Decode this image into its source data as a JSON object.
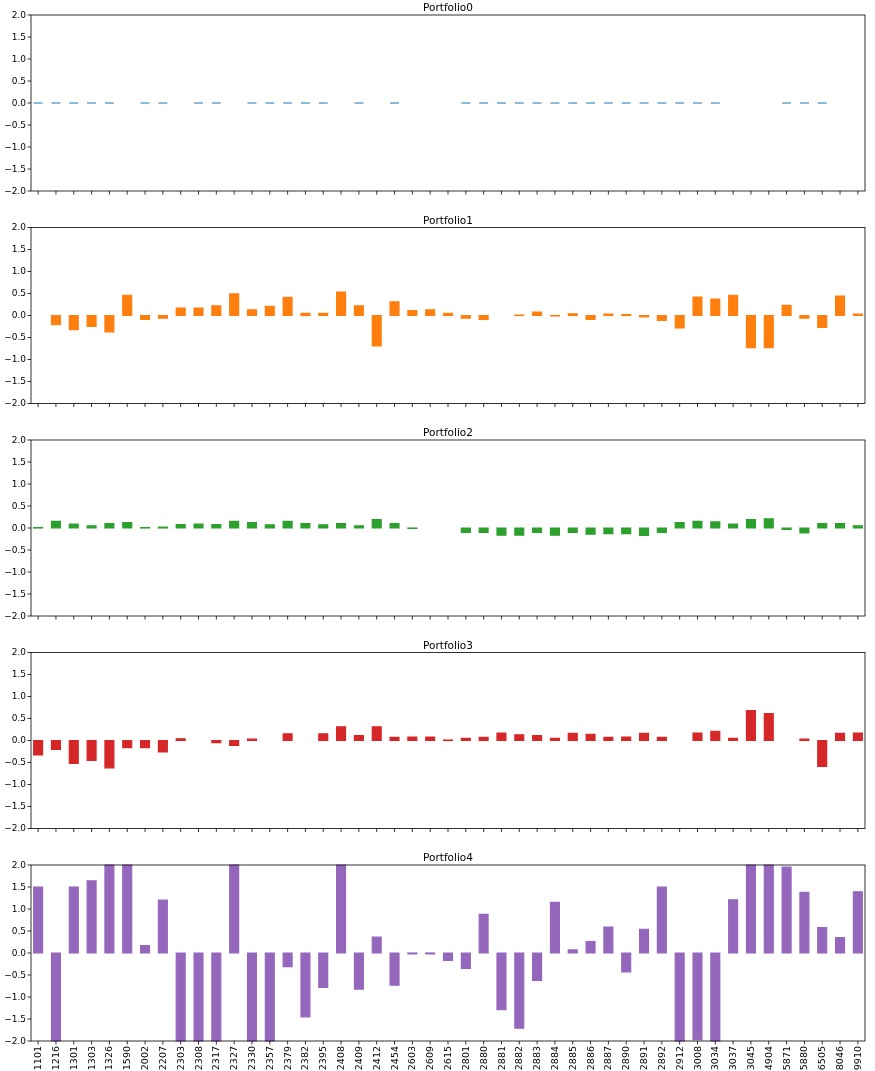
{
  "chart_data": [
    {
      "type": "bar",
      "title": "Portfolio0",
      "categories": [
        "1101",
        "1216",
        "1301",
        "1303",
        "1326",
        "1590",
        "2002",
        "2207",
        "2303",
        "2308",
        "2317",
        "2327",
        "2330",
        "2357",
        "2379",
        "2382",
        "2395",
        "2408",
        "2409",
        "2412",
        "2454",
        "2603",
        "2609",
        "2615",
        "2801",
        "2880",
        "2881",
        "2882",
        "2883",
        "2884",
        "2885",
        "2886",
        "2887",
        "2890",
        "2891",
        "2892",
        "2912",
        "3008",
        "3034",
        "3037",
        "3045",
        "4904",
        "5871",
        "5880",
        "6505",
        "8046",
        "9910"
      ],
      "values": [
        0,
        0,
        0,
        0,
        0,
        null,
        0,
        0,
        null,
        0,
        0,
        null,
        0,
        0,
        0,
        0,
        0,
        null,
        0,
        null,
        0,
        null,
        null,
        null,
        0,
        0,
        0,
        0,
        0,
        0,
        0,
        0,
        0,
        0,
        0,
        0,
        0,
        0,
        0,
        null,
        null,
        null,
        0,
        0,
        0,
        null,
        null
      ],
      "color": "#1f77b4",
      "ylim": [
        -2,
        2
      ],
      "yticks": [
        {
          "value": -2,
          "label": "−2.0"
        },
        {
          "value": -1.5,
          "label": "−1.5"
        },
        {
          "value": -1,
          "label": "−1.0"
        },
        {
          "value": -0.5,
          "label": "−0.5"
        },
        {
          "value": 0,
          "label": "0.0"
        },
        {
          "value": 0.5,
          "label": "0.5"
        },
        {
          "value": 1,
          "label": "1.0"
        },
        {
          "value": 1.5,
          "label": "1.5"
        },
        {
          "value": 2,
          "label": "2.0"
        }
      ],
      "tick_labels": "y"
    },
    {
      "type": "bar",
      "title": "Portfolio1",
      "categories": [
        "1101",
        "1216",
        "1301",
        "1303",
        "1326",
        "1590",
        "2002",
        "2207",
        "2303",
        "2308",
        "2317",
        "2327",
        "2330",
        "2357",
        "2379",
        "2382",
        "2395",
        "2408",
        "2409",
        "2412",
        "2454",
        "2603",
        "2609",
        "2615",
        "2801",
        "2880",
        "2881",
        "2882",
        "2883",
        "2884",
        "2885",
        "2886",
        "2887",
        "2890",
        "2891",
        "2892",
        "2912",
        "3008",
        "3034",
        "3037",
        "3045",
        "4904",
        "5871",
        "5880",
        "6505",
        "8046",
        "9910"
      ],
      "values": [
        null,
        -0.21,
        -0.32,
        -0.25,
        -0.37,
        0.46,
        -0.09,
        -0.06,
        0.17,
        0.17,
        0.22,
        0.49,
        0.13,
        0.21,
        0.41,
        0.05,
        0.05,
        0.53,
        0.22,
        -0.69,
        0.31,
        0.11,
        0.13,
        0.05,
        -0.06,
        -0.09,
        null,
        0.01,
        0.08,
        -0.01,
        0.04,
        -0.09,
        0.03,
        0.02,
        -0.03,
        -0.11,
        -0.28,
        0.42,
        0.37,
        0.46,
        -0.73,
        -0.73,
        0.23,
        -0.06,
        -0.27,
        0.44,
        0.03
      ],
      "color": "#ff7f0e",
      "ylim": [
        -2,
        2
      ],
      "yticks": [
        {
          "value": -2,
          "label": "−2.0"
        },
        {
          "value": -1.5,
          "label": "−1.5"
        },
        {
          "value": -1,
          "label": "−1.0"
        },
        {
          "value": -0.5,
          "label": "−0.5"
        },
        {
          "value": 0,
          "label": "0.0"
        },
        {
          "value": 0.5,
          "label": "0.5"
        },
        {
          "value": 1,
          "label": "1.0"
        },
        {
          "value": 1.5,
          "label": "1.5"
        },
        {
          "value": 2,
          "label": "2.0"
        }
      ],
      "tick_labels": "y"
    },
    {
      "type": "bar",
      "title": "Portfolio2",
      "categories": [
        "1101",
        "1216",
        "1301",
        "1303",
        "1326",
        "1590",
        "2002",
        "2207",
        "2303",
        "2308",
        "2317",
        "2327",
        "2330",
        "2357",
        "2379",
        "2382",
        "2395",
        "2408",
        "2409",
        "2412",
        "2454",
        "2603",
        "2609",
        "2615",
        "2801",
        "2880",
        "2881",
        "2882",
        "2883",
        "2884",
        "2885",
        "2886",
        "2887",
        "2890",
        "2891",
        "2892",
        "2912",
        "3008",
        "3034",
        "3037",
        "3045",
        "4904",
        "5871",
        "5880",
        "6505",
        "8046",
        "9910"
      ],
      "values": [
        0.01,
        0.15,
        0.09,
        0.05,
        0.1,
        0.12,
        0.01,
        0.02,
        0.08,
        0.09,
        0.08,
        0.15,
        0.12,
        0.07,
        0.15,
        0.1,
        0.07,
        0.1,
        0.05,
        0.19,
        0.1,
        -0.01,
        null,
        null,
        -0.1,
        -0.1,
        -0.16,
        -0.16,
        -0.1,
        -0.16,
        -0.1,
        -0.14,
        -0.13,
        -0.13,
        -0.17,
        -0.1,
        0.12,
        0.15,
        0.14,
        0.09,
        0.19,
        0.21,
        -0.03,
        -0.11,
        0.1,
        0.1,
        0.05
      ],
      "color": "#2ca02c",
      "ylim": [
        -2,
        2
      ],
      "yticks": [
        {
          "value": -2,
          "label": "−2.0"
        },
        {
          "value": -1.5,
          "label": "−1.5"
        },
        {
          "value": -1,
          "label": "−1.0"
        },
        {
          "value": -0.5,
          "label": "−0.5"
        },
        {
          "value": 0,
          "label": "0.0"
        },
        {
          "value": 0.5,
          "label": "0.5"
        },
        {
          "value": 1,
          "label": "1.0"
        },
        {
          "value": 1.5,
          "label": "1.5"
        },
        {
          "value": 2,
          "label": "2.0"
        }
      ],
      "tick_labels": "y"
    },
    {
      "type": "bar",
      "title": "Portfolio3",
      "categories": [
        "1101",
        "1216",
        "1301",
        "1303",
        "1326",
        "1590",
        "2002",
        "2207",
        "2303",
        "2308",
        "2317",
        "2327",
        "2330",
        "2357",
        "2379",
        "2382",
        "2395",
        "2408",
        "2409",
        "2412",
        "2454",
        "2603",
        "2609",
        "2615",
        "2801",
        "2880",
        "2881",
        "2882",
        "2883",
        "2884",
        "2885",
        "2886",
        "2887",
        "2890",
        "2891",
        "2892",
        "2912",
        "3008",
        "3034",
        "3037",
        "3045",
        "4904",
        "5871",
        "5880",
        "6505",
        "8046",
        "9910"
      ],
      "values": [
        -0.33,
        -0.2,
        -0.52,
        -0.45,
        -0.62,
        -0.16,
        -0.16,
        -0.26,
        0.04,
        null,
        -0.05,
        -0.11,
        0.03,
        null,
        0.15,
        null,
        0.15,
        0.31,
        0.11,
        0.31,
        0.07,
        0.08,
        0.08,
        0.01,
        0.05,
        0.07,
        0.17,
        0.13,
        0.11,
        0.05,
        0.16,
        0.14,
        0.07,
        0.08,
        0.16,
        0.07,
        null,
        0.17,
        0.21,
        0.05,
        0.68,
        0.61,
        null,
        0.03,
        -0.59,
        0.16,
        0.17
      ],
      "color": "#d62728",
      "ylim": [
        -2,
        2
      ],
      "yticks": [
        {
          "value": -2,
          "label": "−2.0"
        },
        {
          "value": -1.5,
          "label": "−1.5"
        },
        {
          "value": -1,
          "label": "−1.0"
        },
        {
          "value": -0.5,
          "label": "−0.5"
        },
        {
          "value": 0,
          "label": "0.0"
        },
        {
          "value": 0.5,
          "label": "0.5"
        },
        {
          "value": 1,
          "label": "1.0"
        },
        {
          "value": 1.5,
          "label": "1.5"
        },
        {
          "value": 2,
          "label": "2.0"
        }
      ],
      "tick_labels": "y"
    },
    {
      "type": "bar",
      "title": "Portfolio4",
      "categories": [
        "1101",
        "1216",
        "1301",
        "1303",
        "1326",
        "1590",
        "2002",
        "2207",
        "2303",
        "2308",
        "2317",
        "2327",
        "2330",
        "2357",
        "2379",
        "2382",
        "2395",
        "2408",
        "2409",
        "2412",
        "2454",
        "2603",
        "2609",
        "2615",
        "2801",
        "2880",
        "2881",
        "2882",
        "2883",
        "2884",
        "2885",
        "2886",
        "2887",
        "2890",
        "2891",
        "2892",
        "2912",
        "3008",
        "3034",
        "3037",
        "3045",
        "4904",
        "5871",
        "5880",
        "6505",
        "8046",
        "9910"
      ],
      "values": [
        1.5,
        -2,
        1.5,
        1.64,
        2,
        2,
        0.17,
        1.2,
        -2,
        -2,
        -2,
        2,
        -2,
        -2,
        -0.31,
        -1.45,
        -0.78,
        2,
        -0.82,
        0.36,
        -0.73,
        -0.02,
        -0.02,
        -0.17,
        -0.35,
        0.88,
        -1.29,
        -1.71,
        -0.62,
        1.15,
        0.07,
        0.26,
        0.59,
        -0.43,
        0.54,
        1.5,
        -2,
        -1.97,
        -2,
        1.21,
        2,
        2,
        1.95,
        1.38,
        0.58,
        0.35,
        1.39
      ],
      "color": "#9467bd",
      "ylim": [
        -2,
        2
      ],
      "yticks": [
        {
          "value": -2,
          "label": "−2.0"
        },
        {
          "value": -1.5,
          "label": "−1.5"
        },
        {
          "value": -1,
          "label": "−1.0"
        },
        {
          "value": -0.5,
          "label": "−0.5"
        },
        {
          "value": 0,
          "label": "0.0"
        },
        {
          "value": 0.5,
          "label": "0.5"
        },
        {
          "value": 1,
          "label": "1.0"
        },
        {
          "value": 1.5,
          "label": "1.5"
        },
        {
          "value": 2,
          "label": "2.0"
        }
      ]
    }
  ]
}
